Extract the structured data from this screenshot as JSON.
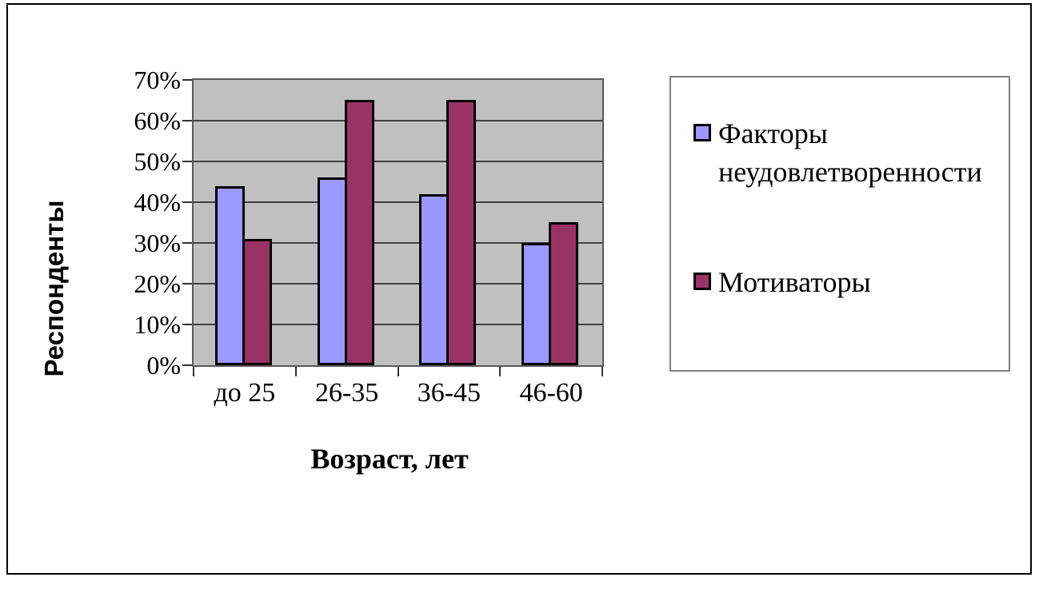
{
  "chart_data": {
    "type": "bar",
    "title": "",
    "categories": [
      "до 25",
      "26-35",
      "36-45",
      "46-60"
    ],
    "series": [
      {
        "name": "Факторы неудовлетворенности",
        "color": "#9999ff",
        "values": [
          44,
          46,
          42,
          30
        ]
      },
      {
        "name": "Мотиваторы",
        "color": "#993366",
        "values": [
          31,
          65,
          65,
          35
        ]
      }
    ],
    "xlabel": "Возраст, лет",
    "ylabel": "Респонденты",
    "ylim": [
      0,
      70
    ],
    "ytick_step": 10,
    "ytick_labels": [
      "0%",
      "10%",
      "20%",
      "30%",
      "40%",
      "50%",
      "60%",
      "70%"
    ],
    "grid": true,
    "legend_position": "right",
    "plot_bg": "#c0c0c0",
    "gridline_color": "#404040"
  }
}
